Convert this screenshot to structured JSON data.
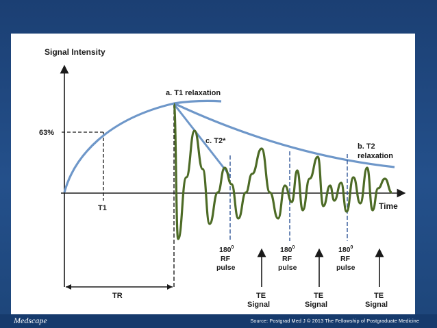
{
  "diagram": {
    "y_axis_label": "Signal Intensity",
    "x_axis_label": "Time",
    "percent_label": "63%",
    "t1_label": "T1",
    "tr_label": "TR",
    "t1_relaxation_label": "a. T1 relaxation",
    "t2star_label": "c. T2*",
    "t2_relaxation_line1": "b. T2",
    "t2_relaxation_line2": "relaxation",
    "rf_pulses": [
      {
        "line1": "180",
        "sup": "0",
        "line2": "RF",
        "line3": "pulse"
      },
      {
        "line1": "180",
        "sup": "0",
        "line2": "RF",
        "line3": "pulse"
      },
      {
        "line1": "180",
        "sup": "0",
        "line2": "RF",
        "line3": "pulse"
      }
    ],
    "te_signals": [
      {
        "line1": "TE",
        "line2": "Signal"
      },
      {
        "line1": "TE",
        "line2": "Signal"
      },
      {
        "line1": "TE",
        "line2": "Signal"
      }
    ],
    "colors": {
      "relaxation_curve": "#6e97c9",
      "signal_wave": "#4d6b26",
      "axis": "#1a1a1a",
      "guide": "#1a1a1a",
      "rf_guide": "#2f5597"
    }
  },
  "footer": {
    "brand": "Medscape",
    "source": "Source: Postgrad Med J © 2013 The Fellowship of Postgraduate Medicine"
  }
}
